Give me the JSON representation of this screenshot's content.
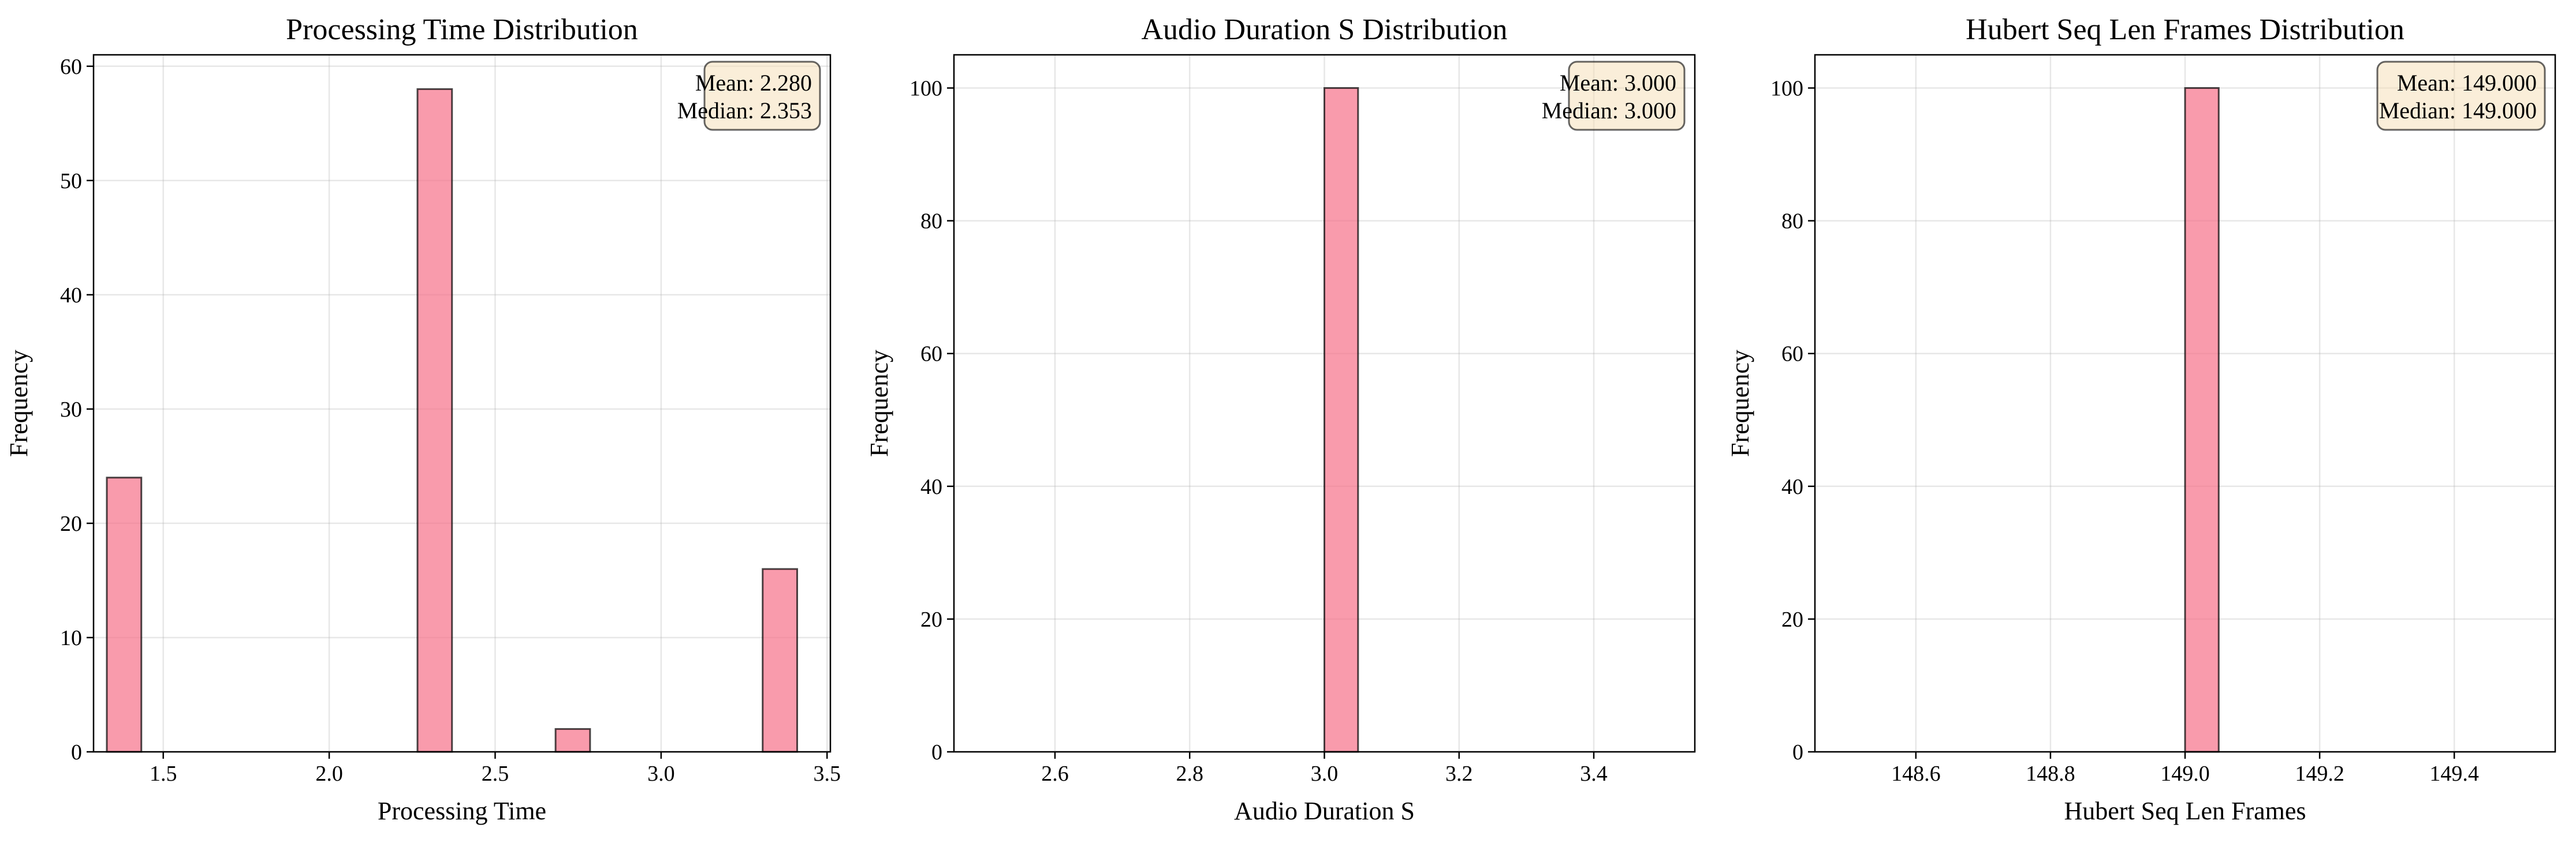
{
  "colors": {
    "bar": "#f77189",
    "bar_opacity": 0.7,
    "stat_box": "#f5deb3"
  },
  "chart_data": [
    {
      "type": "bar",
      "title": "Processing Time Distribution",
      "xlabel": "Processing Time",
      "ylabel": "Frequency",
      "xlim": [
        1.29,
        3.51
      ],
      "ylim": [
        0,
        61
      ],
      "xticks": [
        1.5,
        2.0,
        2.5,
        3.0,
        3.5
      ],
      "xtick_labels": [
        "1.5",
        "2.0",
        "2.5",
        "3.0",
        "3.5"
      ],
      "yticks": [
        0,
        10,
        20,
        30,
        40,
        50,
        60
      ],
      "ytick_labels": [
        "0",
        "10",
        "20",
        "30",
        "40",
        "50",
        "60"
      ],
      "bin_edges": [
        1.33,
        1.434,
        1.538,
        1.642,
        1.746,
        1.85,
        1.954,
        2.058,
        2.162,
        2.266,
        2.37,
        2.474,
        2.578,
        2.682,
        2.786,
        2.89,
        2.994,
        3.098,
        3.202,
        3.306,
        3.41
      ],
      "values": [
        24,
        0,
        0,
        0,
        0,
        0,
        0,
        0,
        0,
        58,
        0,
        0,
        0,
        2,
        0,
        0,
        0,
        0,
        0,
        16
      ],
      "stats": [
        "Mean: 2.280",
        "Median: 2.353"
      ],
      "grid": true,
      "stats_placement": "top-right"
    },
    {
      "type": "bar",
      "title": "Audio Duration S Distribution",
      "xlabel": "Audio Duration S",
      "ylabel": "Frequency",
      "xlim": [
        2.45,
        3.55
      ],
      "ylim": [
        0,
        105
      ],
      "xticks": [
        2.6,
        2.8,
        3.0,
        3.2,
        3.4
      ],
      "xtick_labels": [
        "2.6",
        "2.8",
        "3.0",
        "3.2",
        "3.4"
      ],
      "yticks": [
        0,
        20,
        40,
        60,
        80,
        100
      ],
      "ytick_labels": [
        "0",
        "20",
        "40",
        "60",
        "80",
        "100"
      ],
      "bin_edges": [
        2.5,
        2.55,
        2.6,
        2.65,
        2.7,
        2.75,
        2.8,
        2.85,
        2.9,
        2.95,
        3.0,
        3.05,
        3.1,
        3.15,
        3.2,
        3.25,
        3.3,
        3.35,
        3.4,
        3.45,
        3.5
      ],
      "values": [
        0,
        0,
        0,
        0,
        0,
        0,
        0,
        0,
        0,
        0,
        100,
        0,
        0,
        0,
        0,
        0,
        0,
        0,
        0,
        0
      ],
      "stats": [
        "Mean: 3.000",
        "Median: 3.000"
      ],
      "grid": true,
      "stats_placement": "top-right"
    },
    {
      "type": "bar",
      "title": "Hubert Seq Len Frames Distribution",
      "xlabel": "Hubert Seq Len Frames",
      "ylabel": "Frequency",
      "xlim": [
        148.45,
        149.55
      ],
      "ylim": [
        0,
        105
      ],
      "xticks": [
        148.6,
        148.8,
        149.0,
        149.2,
        149.4
      ],
      "xtick_labels": [
        "148.6",
        "148.8",
        "149.0",
        "149.2",
        "149.4"
      ],
      "yticks": [
        0,
        20,
        40,
        60,
        80,
        100
      ],
      "ytick_labels": [
        "0",
        "20",
        "40",
        "60",
        "80",
        "100"
      ],
      "bin_edges": [
        148.5,
        148.55,
        148.6,
        148.65,
        148.7,
        148.75,
        148.8,
        148.85,
        148.9,
        148.95,
        149.0,
        149.05,
        149.1,
        149.15,
        149.2,
        149.25,
        149.3,
        149.35,
        149.4,
        149.45,
        149.5
      ],
      "values": [
        0,
        0,
        0,
        0,
        0,
        0,
        0,
        0,
        0,
        0,
        100,
        0,
        0,
        0,
        0,
        0,
        0,
        0,
        0,
        0
      ],
      "stats": [
        "Mean: 149.000",
        "Median: 149.000"
      ],
      "grid": true,
      "stats_placement": "top-right"
    }
  ]
}
